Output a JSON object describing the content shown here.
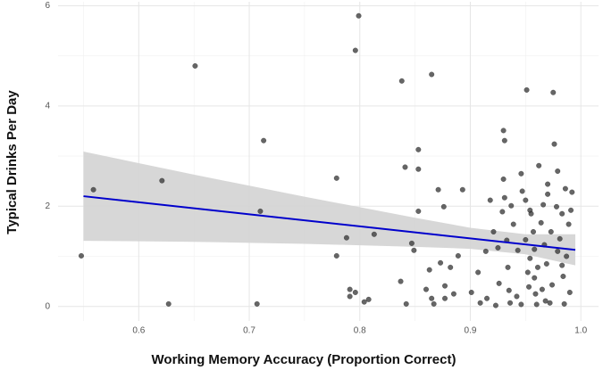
{
  "chart_data": {
    "type": "scatter",
    "x_label": "Working Memory Accuracy (Proportion Correct)",
    "y_label": "Typical Drinks Per Day",
    "xlim": [
      0.527,
      1.016
    ],
    "ylim": [
      -0.29,
      6.08
    ],
    "xticks": [
      0.6,
      0.7,
      0.8,
      0.9,
      {
        "value": 1,
        "label": "1.0"
      }
    ],
    "yticks": [
      0,
      2,
      4,
      6
    ],
    "x_minor_ticks": [
      0.55,
      0.65,
      0.75,
      0.85,
      0.95
    ],
    "y_minor_ticks": [
      1,
      3,
      5
    ],
    "grid": true,
    "point_color": "#333333",
    "series": [
      {
        "x": [
          0.548,
          0.559,
          0.621,
          0.627,
          0.651,
          0.707,
          0.71,
          0.713,
          0.779,
          0.779,
          0.788,
          0.791,
          0.791,
          0.796,
          0.796,
          0.799,
          0.804,
          0.808,
          0.813,
          0.837,
          0.838,
          0.841,
          0.842,
          0.847,
          0.849,
          0.853,
          0.853,
          0.853,
          0.86,
          0.863,
          0.865,
          0.865,
          0.867,
          0.871,
          0.873,
          0.876,
          0.877,
          0.877,
          0.882,
          0.885,
          0.889,
          0.893,
          0.901,
          0.907,
          0.909,
          0.914,
          0.915,
          0.918,
          0.921,
          0.923,
          0.925,
          0.926,
          0.929,
          0.93,
          0.93,
          0.931,
          0.931,
          0.933,
          0.934,
          0.935,
          0.936,
          0.937,
          0.939,
          0.942,
          0.943,
          0.946,
          0.946,
          0.947,
          0.95,
          0.95,
          0.951,
          0.952,
          0.953,
          0.954,
          0.954,
          0.955,
          0.957,
          0.958,
          0.958,
          0.959,
          0.96,
          0.961,
          0.962,
          0.964,
          0.965,
          0.966,
          0.967,
          0.968,
          0.969,
          0.97,
          0.97,
          0.972,
          0.973,
          0.974,
          0.975,
          0.976,
          0.978,
          0.979,
          0.979,
          0.981,
          0.983,
          0.983,
          0.984,
          0.985,
          0.986,
          0.987,
          0.989,
          0.99,
          0.991,
          0.992
        ],
        "values": [
          1.01,
          2.33,
          2.51,
          0.05,
          4.8,
          0.05,
          1.9,
          3.31,
          2.56,
          1.01,
          1.37,
          0.2,
          0.34,
          0.28,
          5.11,
          5.8,
          0.09,
          0.14,
          1.44,
          0.5,
          4.5,
          2.78,
          0.05,
          1.26,
          1.12,
          3.13,
          2.74,
          1.9,
          0.34,
          0.73,
          0.16,
          4.63,
          0.05,
          2.33,
          0.87,
          1.99,
          0.41,
          0.16,
          0.78,
          0.25,
          1.01,
          2.33,
          0.28,
          0.68,
          0.07,
          1.1,
          0.16,
          2.12,
          1.49,
          0.02,
          1.17,
          0.46,
          1.89,
          3.51,
          2.54,
          3.31,
          2.17,
          1.32,
          0.78,
          0.32,
          0.07,
          2.01,
          1.64,
          0.2,
          1.12,
          0.04,
          2.65,
          2.3,
          2.12,
          1.33,
          4.32,
          0.68,
          0.39,
          1.92,
          0.96,
          1.85,
          1.49,
          0.57,
          1.14,
          0.25,
          0.04,
          0.78,
          2.81,
          1.67,
          0.34,
          2.03,
          1.23,
          0.11,
          0.85,
          2.44,
          2.24,
          0.07,
          1.49,
          0.43,
          4.27,
          3.24,
          1.99,
          1.1,
          2.7,
          1.35,
          0.82,
          1.85,
          0.6,
          0.05,
          2.35,
          1.0,
          1.64,
          0.28,
          1.92,
          2.28
        ]
      }
    ],
    "fit": {
      "color": "#0000cc",
      "x": [
        0.55,
        0.995
      ],
      "values": [
        2.2,
        1.13
      ]
    },
    "band": {
      "color": "#d3d3d3",
      "x": [
        0.55,
        0.6,
        0.65,
        0.7,
        0.75,
        0.8,
        0.85,
        0.9,
        0.95,
        0.995
      ],
      "upper": [
        3.09,
        2.86,
        2.63,
        2.41,
        2.19,
        1.98,
        1.77,
        1.57,
        1.44,
        1.44
      ],
      "lower": [
        1.31,
        1.3,
        1.29,
        1.27,
        1.25,
        1.22,
        1.19,
        1.15,
        1.04,
        0.82
      ]
    }
  }
}
